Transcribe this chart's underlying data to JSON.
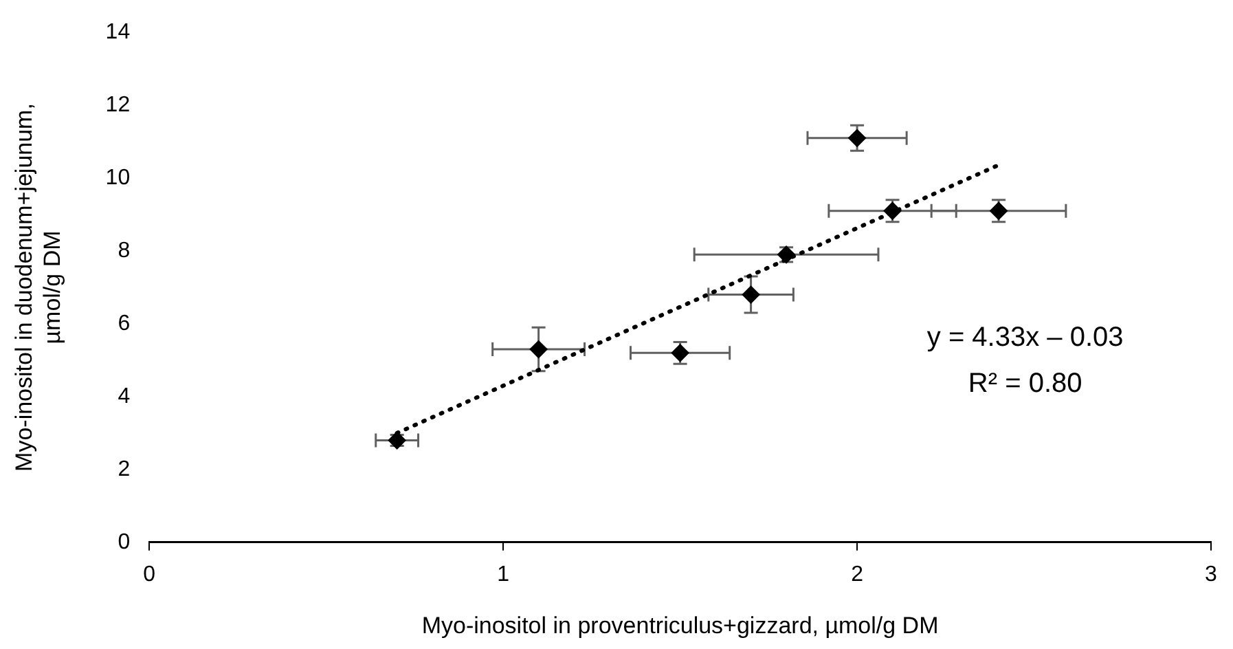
{
  "chart_data": {
    "type": "scatter",
    "xlabel": "Myo-inositol in proventriculus+gizzard, µmol/g DM",
    "ylabel": "Myo-inositol in duodenum+jejunum,\nµmol/g DM",
    "xlim": [
      0,
      3
    ],
    "xticks": [
      0,
      1,
      2,
      3
    ],
    "ylim": [
      0,
      14
    ],
    "yticks": [
      0,
      2,
      4,
      6,
      8,
      10,
      12,
      14
    ],
    "grid": false,
    "legend": false,
    "series": [
      {
        "type": "scatter",
        "color": "#000000",
        "marker": "diamond",
        "x": [
          0.7,
          1.1,
          1.5,
          1.7,
          1.8,
          2.0,
          2.1,
          2.4
        ],
        "values": [
          2.8,
          5.3,
          5.2,
          6.8,
          7.9,
          11.1,
          9.1,
          9.1
        ],
        "errors": [
          0.15,
          0.6,
          0.3,
          0.5,
          0.2,
          0.35,
          0.3,
          0.3
        ],
        "xerrors": [
          0.06,
          0.13,
          0.14,
          0.12,
          0.26,
          0.14,
          0.18,
          0.19
        ]
      },
      {
        "type": "line",
        "color": "#000000",
        "marker": "none",
        "line_style": "dotted",
        "x": [
          0.7,
          2.4
        ],
        "values": [
          3.0,
          10.36
        ]
      }
    ],
    "annotations": [
      "y = 4.33x – 0.03",
      "R² = 0.80"
    ]
  }
}
